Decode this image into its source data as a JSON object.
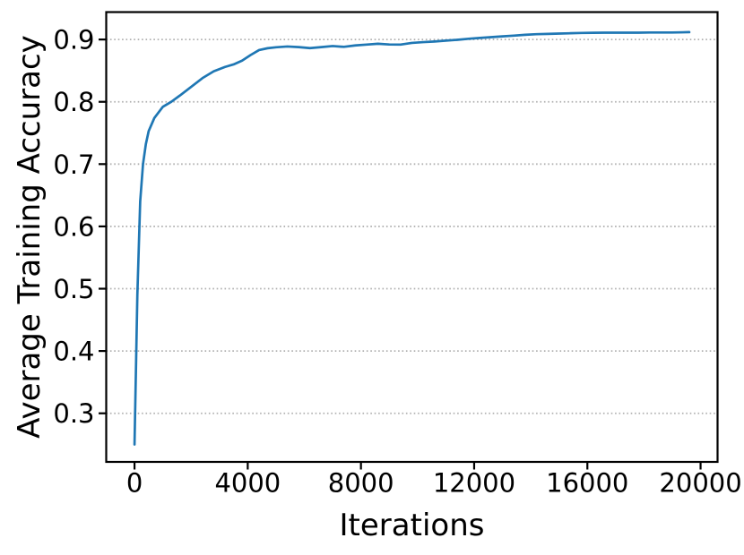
{
  "figure": {
    "background": "#ffffff"
  },
  "chart_data": {
    "type": "line",
    "title": "",
    "xlabel": "Iterations",
    "ylabel": "Average Training Accuracy",
    "x_ticks": [
      0,
      4000,
      8000,
      12000,
      16000,
      20000
    ],
    "x_tick_labels": [
      "0",
      "4000",
      "8000",
      "12000",
      "16000",
      "20000"
    ],
    "y_ticks": [
      0.3,
      0.4,
      0.5,
      0.6,
      0.7,
      0.8,
      0.9
    ],
    "y_tick_labels": [
      "0.3",
      "0.4",
      "0.5",
      "0.6",
      "0.7",
      "0.8",
      "0.9"
    ],
    "xlim": [
      -1000,
      20600
    ],
    "ylim": [
      0.222,
      0.944
    ],
    "grid": {
      "axis": "y",
      "style": "dotted",
      "color": "#b0b0b0"
    },
    "legend_position": "none",
    "line_color": "#1f77b4",
    "axis_color": "#000000",
    "series": [
      {
        "name": "Average Training Accuracy",
        "x": [
          0,
          100,
          200,
          300,
          400,
          500,
          700,
          1000,
          1300,
          1600,
          2000,
          2400,
          2800,
          3200,
          3500,
          3800,
          4100,
          4400,
          4700,
          5000,
          5400,
          5800,
          6200,
          6600,
          7000,
          7400,
          7800,
          8200,
          8600,
          9000,
          9400,
          9800,
          10200,
          10600,
          11000,
          11400,
          11800,
          12200,
          12600,
          13000,
          13400,
          13800,
          14200,
          14600,
          15000,
          15400,
          15800,
          16200,
          16600,
          17000,
          17400,
          17800,
          18200,
          18600,
          19000,
          19600
        ],
        "y": [
          0.25,
          0.49,
          0.64,
          0.7,
          0.732,
          0.753,
          0.774,
          0.792,
          0.8,
          0.81,
          0.824,
          0.838,
          0.849,
          0.856,
          0.86,
          0.866,
          0.875,
          0.883,
          0.886,
          0.8875,
          0.8888,
          0.8878,
          0.8862,
          0.8878,
          0.8895,
          0.8882,
          0.8905,
          0.8918,
          0.8932,
          0.892,
          0.8918,
          0.8945,
          0.8958,
          0.8968,
          0.8982,
          0.8995,
          0.9012,
          0.9025,
          0.9038,
          0.905,
          0.9062,
          0.9075,
          0.9085,
          0.909,
          0.9095,
          0.91,
          0.9105,
          0.9108,
          0.911,
          0.911,
          0.911,
          0.911,
          0.9112,
          0.9112,
          0.9112,
          0.9118
        ]
      }
    ]
  }
}
